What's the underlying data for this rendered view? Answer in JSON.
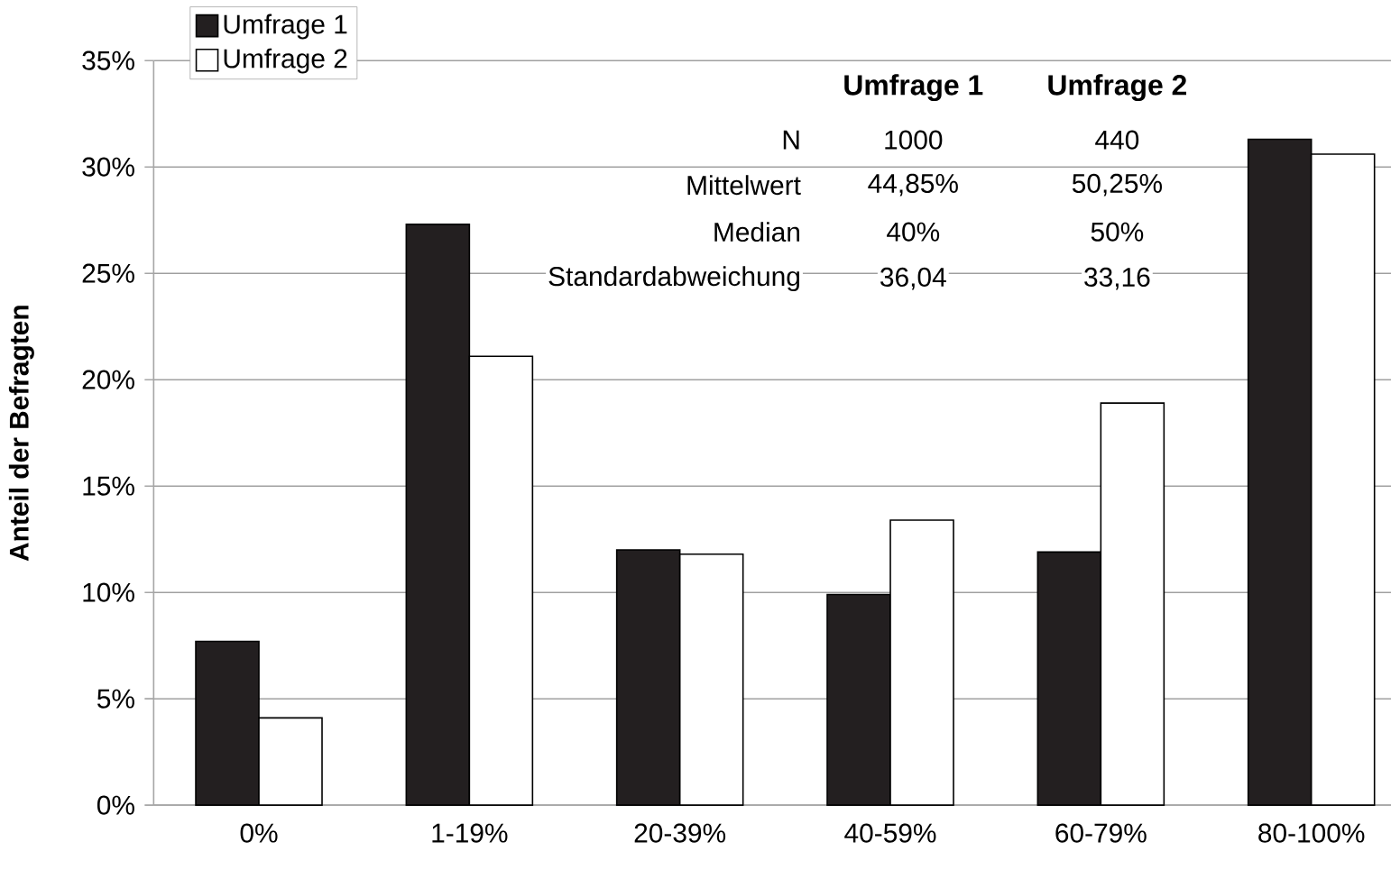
{
  "chart_data": {
    "type": "bar",
    "ylabel": "Anteil der Befragten",
    "categories": [
      "0%",
      "1-19%",
      "20-39%",
      "40-59%",
      "60-79%",
      "80-100%"
    ],
    "series": [
      {
        "name": "Umfrage 1",
        "color": "#231f20",
        "values": [
          7.7,
          27.3,
          12.0,
          9.9,
          11.9,
          31.3
        ]
      },
      {
        "name": "Umfrage 2",
        "color": "#ffffff",
        "values": [
          4.1,
          21.1,
          11.8,
          13.4,
          18.9,
          30.6
        ]
      }
    ],
    "ylim": [
      0,
      35
    ],
    "yticks": [
      {
        "value": 0,
        "label": "0%"
      },
      {
        "value": 5,
        "label": "5%"
      },
      {
        "value": 10,
        "label": "10%"
      },
      {
        "value": 15,
        "label": "15%"
      },
      {
        "value": 20,
        "label": "20%"
      },
      {
        "value": 25,
        "label": "25%"
      },
      {
        "value": 30,
        "label": "30%"
      },
      {
        "value": 35,
        "label": "35%"
      }
    ],
    "grid": "y",
    "legend": "top left",
    "annotations": [
      "Umfrage 1",
      "Umfrage 2",
      "N",
      "1000",
      "440",
      "Mittelwert",
      "44,85%",
      "50,25%",
      "Median",
      "40%",
      "50%",
      "Standardabweichung",
      "36,04",
      "33,16"
    ]
  }
}
